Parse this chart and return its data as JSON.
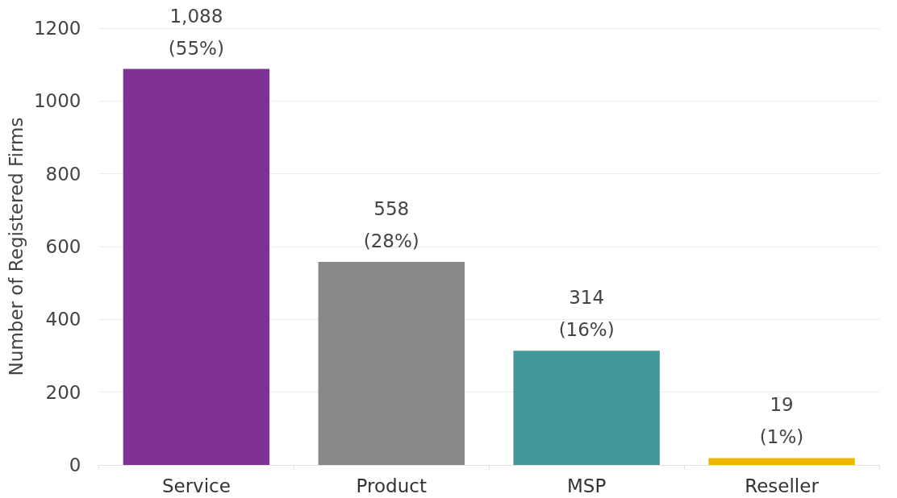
{
  "chart_data": {
    "type": "bar",
    "ylabel": "Number of Registered Firms",
    "categories": [
      "Service",
      "Product",
      "MSP",
      "Reseller"
    ],
    "values": [
      1088,
      558,
      314,
      19
    ],
    "colors": [
      "#7f3196",
      "#888888",
      "#43979a",
      "#efb800"
    ],
    "value_labels": [
      "1,088\n(55%)",
      "558\n(28%)",
      "314\n(16%)",
      "19\n(1%)"
    ],
    "ylim": [
      0,
      1200
    ],
    "yticks": [
      0,
      200,
      400,
      600,
      800,
      1000,
      1200
    ],
    "grid": "y"
  }
}
